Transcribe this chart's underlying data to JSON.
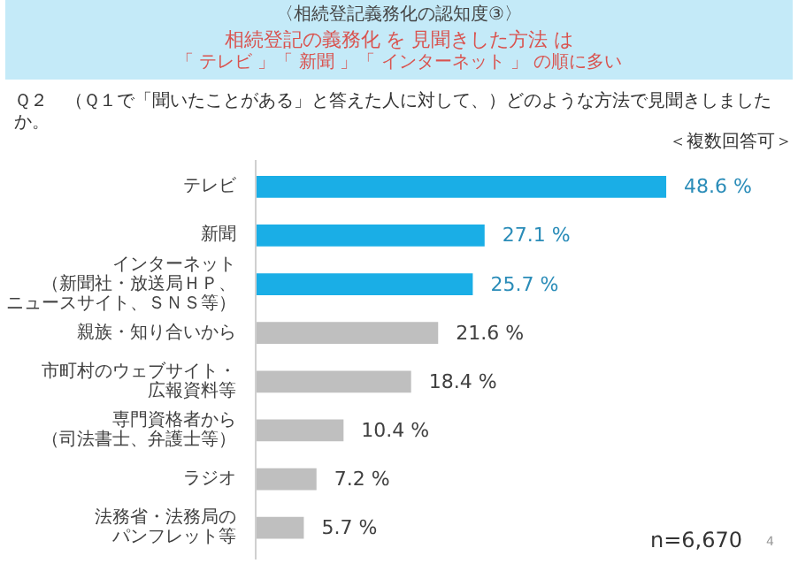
{
  "chart_data": {
    "type": "bar",
    "orientation": "horizontal",
    "title": "〈相続登記義務化の認知度③〉",
    "subtitle": "相続登記の義務化 を 見聞きした方法 は",
    "annotations": [
      "「 テレビ 」「 新聞 」「 インターネット 」 の順に多い",
      "Ｑ２　（Ｑ１で「聞いたことがある」と答えた人に対して、）どのような方法で見聞きしましたか。",
      "＜複数回答可＞",
      "n=6,670",
      "4"
    ],
    "categories": [
      "テレビ",
      "新聞",
      "インターネット（新聞社・放送局ＨＰ、ニュースサイト、ＳＮＳ等）",
      "親族・知り合いから",
      "市町村のウェブサイト・広報資料等",
      "専門資格者から（司法書士、弁護士等）",
      "ラジオ",
      "法務省・法務局のパンフレット等"
    ],
    "values": [
      48.6,
      27.1,
      25.7,
      21.6,
      18.4,
      10.4,
      7.2,
      5.7
    ],
    "colors": [
      "#1aaee6",
      "#1aaee6",
      "#1aaee6",
      "#bfbfbf",
      "#bfbfbf",
      "#bfbfbf",
      "#bfbfbf",
      "#bfbfbf"
    ],
    "value_labels": [
      "48.6 %",
      "27.1 %",
      "25.7 %",
      "21.6 %",
      "18.4 %",
      "10.4 %",
      "7.2 %",
      "5.7 %"
    ]
  }
}
